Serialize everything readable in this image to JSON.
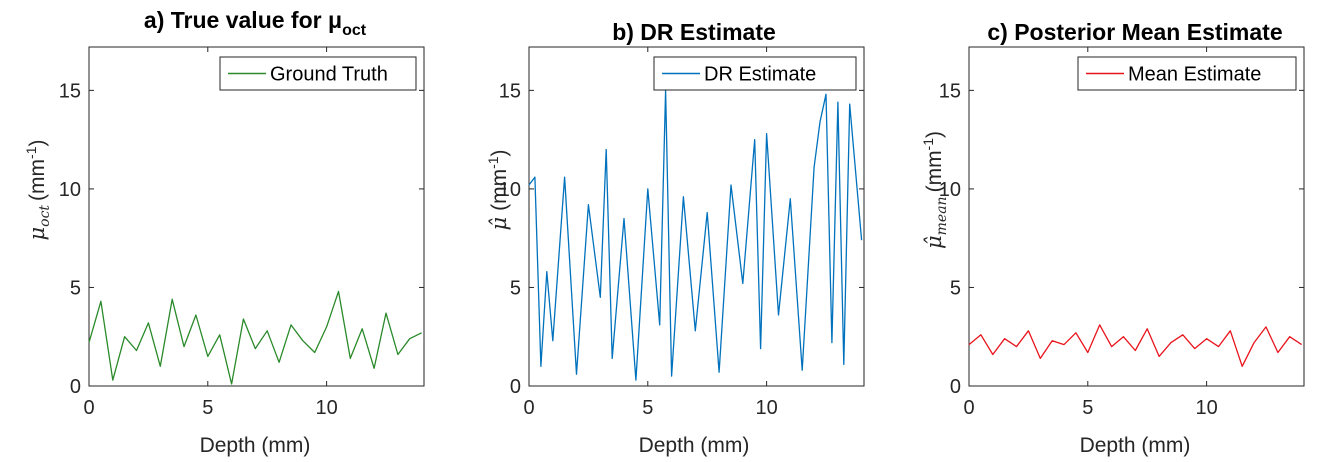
{
  "chart_data": [
    {
      "type": "line",
      "title": "a) True value for μ",
      "title_sub": "oct",
      "xlabel": "Depth (mm)",
      "ylabel": "μ",
      "ylabel_sub": "oct",
      "ylabel_unit": "(mm",
      "ylabel_exp": "-1",
      "ylabel_close": ")",
      "xlim": [
        0,
        14.1
      ],
      "ylim": [
        0,
        17.2
      ],
      "xticks": [
        0,
        5,
        10
      ],
      "yticks": [
        0,
        5,
        10,
        15
      ],
      "grid": false,
      "legend_position": "top-right",
      "series": [
        {
          "name": "Ground Truth",
          "color": "#2a8a2a",
          "x": [
            0.0,
            0.5,
            1.0,
            1.5,
            2.0,
            2.5,
            3.0,
            3.5,
            4.0,
            4.5,
            5.0,
            5.5,
            6.0,
            6.5,
            7.0,
            7.5,
            8.0,
            8.5,
            9.0,
            9.5,
            10.0,
            10.5,
            11.0,
            11.5,
            12.0,
            12.5,
            13.0,
            13.5,
            14.0
          ],
          "y": [
            2.2,
            4.3,
            0.3,
            2.5,
            1.8,
            3.2,
            1.0,
            4.4,
            2.0,
            3.6,
            1.5,
            2.6,
            0.1,
            3.4,
            1.9,
            2.8,
            1.2,
            3.1,
            2.3,
            1.7,
            3.0,
            4.8,
            1.4,
            2.9,
            0.9,
            3.7,
            1.6,
            2.4,
            2.7
          ]
        }
      ]
    },
    {
      "type": "line",
      "title": "b) DR Estimate",
      "xlabel": "Depth (mm)",
      "ylabel": "μ̂",
      "ylabel_unit": "(mm",
      "ylabel_exp": "-1",
      "ylabel_close": ")",
      "xlim": [
        0,
        14.1
      ],
      "ylim": [
        0,
        17.2
      ],
      "xticks": [
        0,
        5,
        10
      ],
      "yticks": [
        0,
        5,
        10,
        15
      ],
      "grid": false,
      "legend_position": "top-right",
      "series": [
        {
          "name": "DR Estimate",
          "color": "#0072bd",
          "x": [
            0.0,
            0.25,
            0.5,
            0.75,
            1.0,
            1.5,
            2.0,
            2.5,
            3.0,
            3.25,
            3.5,
            4.0,
            4.5,
            5.0,
            5.5,
            5.75,
            6.0,
            6.5,
            7.0,
            7.5,
            8.0,
            8.5,
            9.0,
            9.5,
            9.75,
            10.0,
            10.5,
            11.0,
            11.5,
            12.0,
            12.25,
            12.5,
            12.75,
            13.0,
            13.25,
            13.5,
            14.0
          ],
          "y": [
            10.2,
            10.6,
            1.0,
            5.8,
            2.3,
            10.6,
            0.6,
            9.2,
            4.5,
            12.0,
            1.4,
            8.5,
            0.3,
            10.0,
            3.1,
            15.0,
            0.5,
            9.6,
            2.8,
            8.8,
            0.7,
            10.2,
            5.2,
            12.5,
            1.9,
            12.8,
            3.6,
            9.5,
            0.8,
            11.1,
            13.4,
            14.8,
            2.2,
            14.4,
            1.1,
            14.3,
            7.4
          ]
        }
      ]
    },
    {
      "type": "line",
      "title": "c) Posterior Mean Estimate",
      "xlabel": "Depth (mm)",
      "ylabel": "μ̂",
      "ylabel_sub": "mean",
      "ylabel_unit": "(mm",
      "ylabel_exp": "-1",
      "ylabel_close": ")",
      "xlim": [
        0,
        14.1
      ],
      "ylim": [
        0,
        17.2
      ],
      "xticks": [
        0,
        5,
        10
      ],
      "yticks": [
        0,
        5,
        10,
        15
      ],
      "grid": false,
      "legend_position": "top-right",
      "series": [
        {
          "name": "Mean Estimate",
          "color": "#e8141c",
          "x": [
            0.0,
            0.5,
            1.0,
            1.5,
            2.0,
            2.5,
            3.0,
            3.5,
            4.0,
            4.5,
            5.0,
            5.5,
            6.0,
            6.5,
            7.0,
            7.5,
            8.0,
            8.5,
            9.0,
            9.5,
            10.0,
            10.5,
            11.0,
            11.5,
            12.0,
            12.5,
            13.0,
            13.5,
            14.0
          ],
          "y": [
            2.1,
            2.6,
            1.6,
            2.4,
            2.0,
            2.8,
            1.4,
            2.3,
            2.1,
            2.7,
            1.7,
            3.1,
            2.0,
            2.5,
            1.8,
            2.9,
            1.5,
            2.2,
            2.6,
            1.9,
            2.4,
            2.0,
            2.8,
            1.0,
            2.2,
            3.0,
            1.7,
            2.5,
            2.1
          ]
        }
      ]
    }
  ]
}
